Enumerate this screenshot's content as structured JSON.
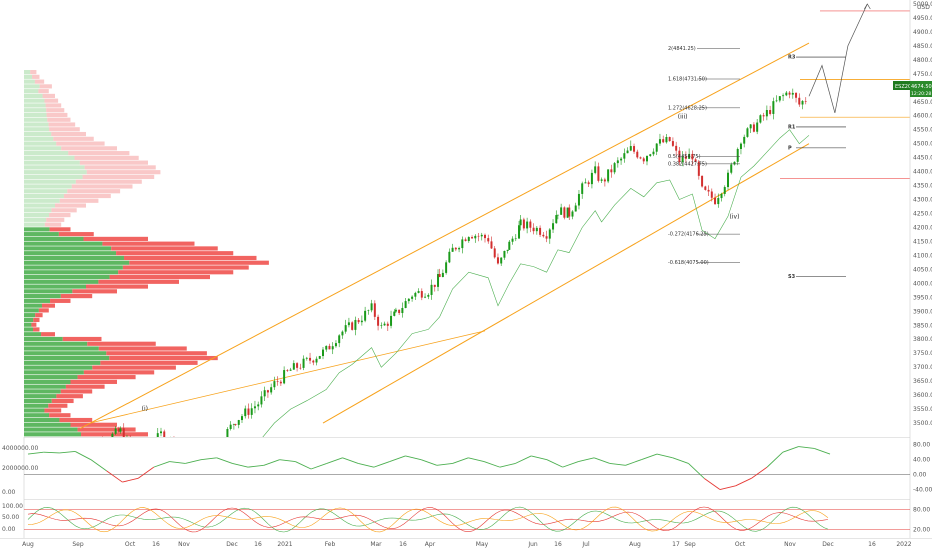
{
  "chart_data": {
    "type": "candlestick",
    "symbol_badge": "ESZ2021",
    "last_price": "4674.50",
    "countdown": "12:20:28",
    "currency": "USD",
    "price_axis": {
      "min": 3450,
      "max": 5000,
      "ticks": [
        "5000.00",
        "4950.00",
        "4900.00",
        "4850.00",
        "4800.00",
        "4750.00",
        "4700.00",
        "4650.00",
        "4600.00",
        "4550.00",
        "4500.00",
        "4450.00",
        "4400.00",
        "4350.00",
        "4300.00",
        "4250.00",
        "4200.00",
        "4150.00",
        "4100.00",
        "4050.00",
        "4000.00",
        "3950.00",
        "3900.00",
        "3850.00",
        "3800.00",
        "3750.00",
        "3700.00",
        "3650.00",
        "3600.00",
        "3550.00",
        "3500.00"
      ]
    },
    "time_axis": [
      "Aug",
      "Sep",
      "Oct",
      "16",
      "Nov",
      "Dec",
      "16",
      "2021",
      "Feb",
      "Mar",
      "16",
      "Apr",
      "May",
      "Jun",
      "16",
      "Jul",
      "Aug",
      "17",
      "Sep",
      "Oct",
      "Nov",
      "Dec",
      "16",
      "2022"
    ],
    "price_path": [
      [
        0,
        3390
      ],
      [
        12,
        3430
      ],
      [
        25,
        3470
      ],
      [
        32,
        3405
      ],
      [
        40,
        3385
      ],
      [
        50,
        3460
      ],
      [
        60,
        3420
      ],
      [
        75,
        3380
      ],
      [
        85,
        3420
      ],
      [
        96,
        3510
      ],
      [
        110,
        3570
      ],
      [
        120,
        3640
      ],
      [
        130,
        3690
      ],
      [
        140,
        3720
      ],
      [
        152,
        3760
      ],
      [
        160,
        3820
      ],
      [
        168,
        3850
      ],
      [
        180,
        3910
      ],
      [
        186,
        3840
      ],
      [
        195,
        3890
      ],
      [
        205,
        3960
      ],
      [
        215,
        3975
      ],
      [
        222,
        4020
      ],
      [
        230,
        4120
      ],
      [
        240,
        4180
      ],
      [
        252,
        4160
      ],
      [
        258,
        4060
      ],
      [
        265,
        4140
      ],
      [
        272,
        4210
      ],
      [
        280,
        4200
      ],
      [
        288,
        4180
      ],
      [
        295,
        4260
      ],
      [
        302,
        4250
      ],
      [
        310,
        4340
      ],
      [
        318,
        4400
      ],
      [
        322,
        4360
      ],
      [
        330,
        4420
      ],
      [
        340,
        4480
      ],
      [
        348,
        4450
      ],
      [
        356,
        4500
      ],
      [
        364,
        4510
      ],
      [
        370,
        4440
      ],
      [
        378,
        4460
      ],
      [
        384,
        4330
      ],
      [
        392,
        4300
      ],
      [
        400,
        4380
      ],
      [
        408,
        4520
      ],
      [
        416,
        4560
      ],
      [
        424,
        4610
      ],
      [
        432,
        4660
      ],
      [
        438,
        4690
      ],
      [
        444,
        4640
      ],
      [
        450,
        4670
      ]
    ],
    "channel": {
      "upper": [
        [
          0,
          3480
        ],
        [
          450,
          4860
        ]
      ],
      "lower": [
        [
          150,
          3500
        ],
        [
          450,
          4500
        ]
      ],
      "color": "#f7a21b"
    },
    "projection": [
      [
        450,
        4670
      ],
      [
        458,
        4780
      ],
      [
        466,
        4610
      ],
      [
        474,
        4850
      ],
      [
        486,
        5000
      ]
    ],
    "fib_levels": [
      {
        "label": "2(4841.25)",
        "price": 4841.25
      },
      {
        "label": "1.618(4731.50)",
        "price": 4731.5
      },
      {
        "label": "1.272(4628.25)",
        "price": 4628.25
      },
      {
        "label": "0.5(4454.75)",
        "price": 4454.75
      },
      {
        "label": "0.382(4427.75)",
        "price": 4427.75
      },
      {
        "label": "-0.272(4176.25)",
        "price": 4176.25
      },
      {
        "label": "-0.618(4075.00)",
        "price": 4075.0
      }
    ],
    "pivots": [
      {
        "label": "R3",
        "price": 4810
      },
      {
        "label": "R1",
        "price": 4560
      },
      {
        "label": "P",
        "price": 4485
      },
      {
        "label": "S3",
        "price": 4025
      }
    ],
    "wave_labels": [
      {
        "label": "(i)",
        "price": 3545
      },
      {
        "label": "(iii)",
        "price": 4590
      },
      {
        "label": "(iv)",
        "price": 4232
      }
    ],
    "volume_profile": {
      "rows": [
        8,
        10,
        13,
        18,
        16,
        20,
        22,
        24,
        26,
        28,
        30,
        33,
        36,
        40,
        45,
        52,
        60,
        68,
        74,
        80,
        85,
        88,
        84,
        76,
        70,
        62,
        56,
        48,
        40,
        34,
        30,
        26,
        24,
        30,
        45,
        80,
        110,
        125,
        135,
        150,
        158,
        145,
        135,
        120,
        100,
        80,
        60,
        44,
        30,
        20,
        16,
        12,
        10,
        8,
        10,
        20,
        50,
        85,
        105,
        118,
        125,
        112,
        98,
        84,
        72,
        60,
        52,
        44,
        38,
        32,
        28,
        24,
        30,
        44,
        60,
        72,
        80
      ],
      "up_share": [
        0.5,
        0.52,
        0.54,
        0.56,
        0.58,
        0.6,
        0.6,
        0.58,
        0.55,
        0.52,
        0.5,
        0.48,
        0.45,
        0.44,
        0.42,
        0.4,
        0.4,
        0.42,
        0.44,
        0.45,
        0.46,
        0.46,
        0.45,
        0.44,
        0.44,
        0.45,
        0.46,
        0.48,
        0.5,
        0.52,
        0.54,
        0.55,
        0.56,
        0.55,
        0.5,
        0.48,
        0.46,
        0.45,
        0.44,
        0.43,
        0.43,
        0.44,
        0.45,
        0.46,
        0.48,
        0.5,
        0.52,
        0.54,
        0.56,
        0.58,
        0.6,
        0.6,
        0.6,
        0.6,
        0.58,
        0.55,
        0.5,
        0.48,
        0.46,
        0.45,
        0.44,
        0.44,
        0.45,
        0.46,
        0.48,
        0.5,
        0.52,
        0.54,
        0.55,
        0.56,
        0.56,
        0.55,
        0.54,
        0.52,
        0.5,
        0.48,
        0.46
      ]
    },
    "osc1": {
      "ticks": [
        "80.00",
        "40.00",
        "0.00",
        "-40.00"
      ],
      "left_ticks": [
        "4000000.00",
        "2000000.00",
        "0.00"
      ],
      "values": [
        55,
        60,
        58,
        62,
        40,
        10,
        -20,
        -10,
        20,
        35,
        30,
        40,
        45,
        30,
        20,
        25,
        40,
        35,
        15,
        30,
        45,
        30,
        20,
        35,
        50,
        40,
        25,
        30,
        45,
        35,
        20,
        30,
        50,
        40,
        20,
        35,
        45,
        30,
        25,
        40,
        55,
        45,
        30,
        -10,
        -40,
        -30,
        -10,
        20,
        60,
        75,
        70,
        55
      ]
    },
    "osc2": {
      "ticks": [
        "80.00",
        "20.00"
      ],
      "left_ticks": [
        "100.00",
        "50.00",
        "0.00"
      ],
      "lines": [
        80,
        20
      ]
    }
  }
}
